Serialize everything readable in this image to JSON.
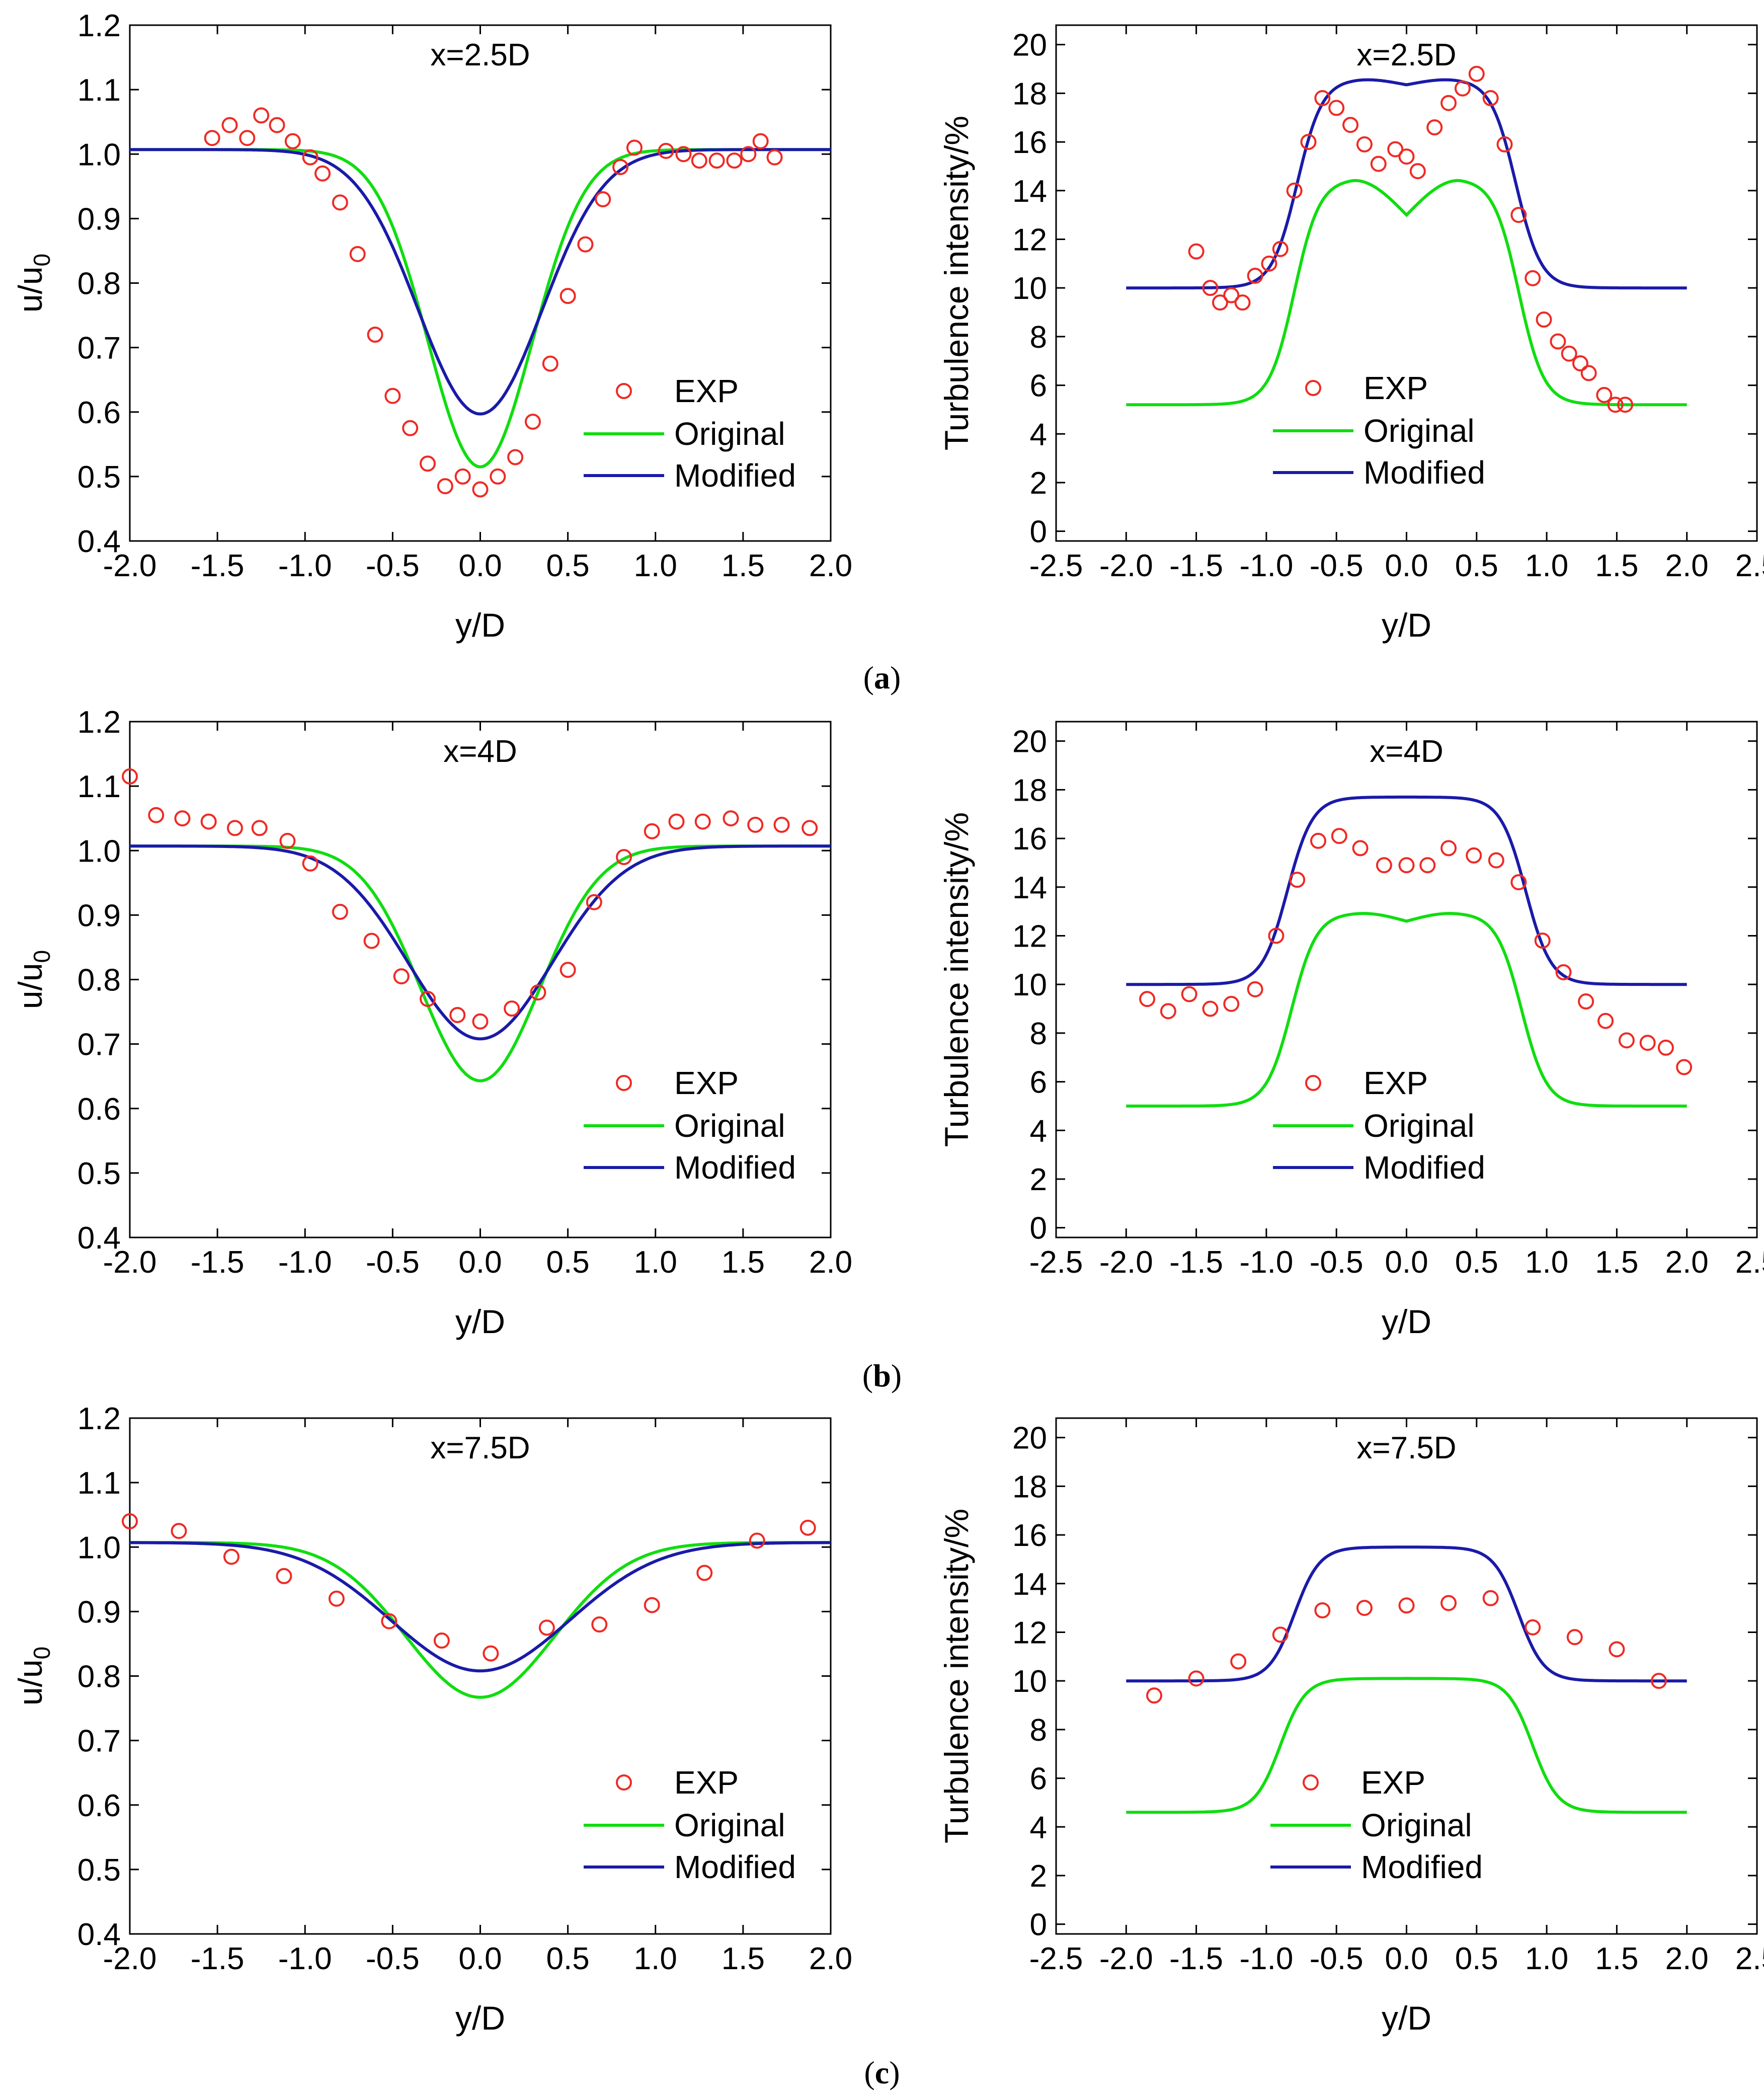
{
  "figure": {
    "panel_labels": [
      {
        "open": "(",
        "letter": "a",
        "close": ")"
      },
      {
        "open": "(",
        "letter": "b",
        "close": ")"
      },
      {
        "open": "(",
        "letter": "c",
        "close": ")"
      }
    ]
  },
  "legend": {
    "exp": "EXP",
    "original": "Original",
    "modified": "Modified"
  },
  "colors": {
    "exp": "#ee2a24",
    "original": "#10dd10",
    "modified": "#1a1aa8"
  },
  "chart_data": [
    {
      "id": "a-velocity",
      "panel": "a",
      "type": "line",
      "title": "x=2.5D",
      "xlabel": "y/D",
      "ylabel_main": "u/u",
      "ylabel_sub": "0",
      "xlim": [
        -2.0,
        2.0
      ],
      "ylim": [
        0.4,
        1.2
      ],
      "xticks": [
        -2.0,
        -1.5,
        -1.0,
        -0.5,
        0.0,
        0.5,
        1.0,
        1.5,
        2.0
      ],
      "yticks": [
        0.4,
        0.5,
        0.6,
        0.7,
        0.8,
        0.9,
        1.0,
        1.1,
        1.2
      ],
      "xtick_labels": [
        "-2.0",
        "-1.5",
        "-1.0",
        "-0.5",
        "0.0",
        "0.5",
        "1.0",
        "1.5",
        "2.0"
      ],
      "ytick_labels": [
        "0.4",
        "0.5",
        "0.6",
        "0.7",
        "0.8",
        "0.9",
        "1.0",
        "1.1",
        "1.2"
      ],
      "exp": [
        [
          -1.53,
          1.025
        ],
        [
          -1.43,
          1.045
        ],
        [
          -1.33,
          1.025
        ],
        [
          -1.25,
          1.06
        ],
        [
          -1.16,
          1.045
        ],
        [
          -1.07,
          1.02
        ],
        [
          -0.97,
          0.995
        ],
        [
          -0.9,
          0.97
        ],
        [
          -0.8,
          0.925
        ],
        [
          -0.7,
          0.845
        ],
        [
          -0.6,
          0.72
        ],
        [
          -0.5,
          0.625
        ],
        [
          -0.4,
          0.575
        ],
        [
          -0.3,
          0.52
        ],
        [
          -0.2,
          0.485
        ],
        [
          -0.1,
          0.5
        ],
        [
          0.0,
          0.48
        ],
        [
          0.1,
          0.5
        ],
        [
          0.2,
          0.53
        ],
        [
          0.3,
          0.585
        ],
        [
          0.4,
          0.675
        ],
        [
          0.5,
          0.78
        ],
        [
          0.6,
          0.86
        ],
        [
          0.7,
          0.93
        ],
        [
          0.8,
          0.98
        ],
        [
          0.88,
          1.01
        ],
        [
          1.06,
          1.005
        ],
        [
          1.16,
          1.0
        ],
        [
          1.25,
          0.99
        ],
        [
          1.35,
          0.99
        ],
        [
          1.45,
          0.99
        ],
        [
          1.53,
          1.0
        ],
        [
          1.6,
          1.02
        ],
        [
          1.68,
          0.995
        ]
      ],
      "original": {
        "baseline": 1.007,
        "center": 0.515,
        "flat": 0.0,
        "width": 0.42,
        "shape": 2.0
      },
      "modified": {
        "baseline": 1.007,
        "center": 0.597,
        "flat": 0.0,
        "width": 0.5,
        "shape": 2.0
      }
    },
    {
      "id": "a-turbulence",
      "panel": "a",
      "type": "line",
      "title": "x=2.5D",
      "xlabel": "y/D",
      "ylabel_main": "Turbulence intensity/%",
      "ylabel_sub": "",
      "xlim": [
        -2.5,
        2.5
      ],
      "ylim": [
        -0.4,
        20.8
      ],
      "xticks": [
        -2.5,
        -2.0,
        -1.5,
        -1.0,
        -0.5,
        0.0,
        0.5,
        1.0,
        1.5,
        2.0,
        2.5
      ],
      "yticks": [
        0,
        2,
        4,
        6,
        8,
        10,
        12,
        14,
        16,
        18,
        20
      ],
      "xtick_labels": [
        "-2.5",
        "-2.0",
        "-1.5",
        "-1.0",
        "-0.5",
        "0.0",
        "0.5",
        "1.0",
        "1.5",
        "2.0",
        "2.5"
      ],
      "ytick_labels": [
        "0",
        "2",
        "4",
        "6",
        "8",
        "10",
        "12",
        "14",
        "16",
        "18",
        "20"
      ],
      "exp": [
        [
          -1.5,
          11.5
        ],
        [
          -1.4,
          10.0
        ],
        [
          -1.33,
          9.4
        ],
        [
          -1.25,
          9.7
        ],
        [
          -1.17,
          9.4
        ],
        [
          -1.08,
          10.5
        ],
        [
          -0.98,
          11.0
        ],
        [
          -0.9,
          11.6
        ],
        [
          -0.8,
          14.0
        ],
        [
          -0.7,
          16.0
        ],
        [
          -0.6,
          17.8
        ],
        [
          -0.5,
          17.4
        ],
        [
          -0.4,
          16.7
        ],
        [
          -0.3,
          15.9
        ],
        [
          -0.2,
          15.1
        ],
        [
          -0.08,
          15.7
        ],
        [
          0.0,
          15.4
        ],
        [
          0.08,
          14.8
        ],
        [
          0.2,
          16.6
        ],
        [
          0.3,
          17.6
        ],
        [
          0.4,
          18.2
        ],
        [
          0.5,
          18.8
        ],
        [
          0.6,
          17.8
        ],
        [
          0.7,
          15.9
        ],
        [
          0.8,
          13.0
        ],
        [
          0.9,
          10.4
        ],
        [
          0.98,
          8.7
        ],
        [
          1.08,
          7.8
        ],
        [
          1.16,
          7.3
        ],
        [
          1.24,
          6.9
        ],
        [
          1.3,
          6.5
        ],
        [
          1.41,
          5.6
        ],
        [
          1.49,
          5.2
        ],
        [
          1.56,
          5.2
        ]
      ],
      "original": {
        "baseline": 5.2,
        "center": 13.0,
        "peak": 14.5,
        "peak_at": 0.4,
        "plateau_half": 0.8
      },
      "modified": {
        "baseline": 10.0,
        "center": 18.35,
        "peak": 18.6,
        "peak_at": 0.35,
        "plateau_half": 0.78
      }
    },
    {
      "id": "b-velocity",
      "panel": "b",
      "type": "line",
      "title": "x=4D",
      "xlabel": "y/D",
      "ylabel_main": "u/u",
      "ylabel_sub": "0",
      "xlim": [
        -2.0,
        2.0
      ],
      "ylim": [
        0.4,
        1.2
      ],
      "xticks": [
        -2.0,
        -1.5,
        -1.0,
        -0.5,
        0.0,
        0.5,
        1.0,
        1.5,
        2.0
      ],
      "yticks": [
        0.4,
        0.5,
        0.6,
        0.7,
        0.8,
        0.9,
        1.0,
        1.1,
        1.2
      ],
      "xtick_labels": [
        "-2.0",
        "-1.5",
        "-1.0",
        "-0.5",
        "0.0",
        "0.5",
        "1.0",
        "1.5",
        "2.0"
      ],
      "ytick_labels": [
        "0.4",
        "0.5",
        "0.6",
        "0.7",
        "0.8",
        "0.9",
        "1.0",
        "1.1",
        "1.2"
      ],
      "exp": [
        [
          -2.0,
          1.115
        ],
        [
          -1.85,
          1.055
        ],
        [
          -1.7,
          1.05
        ],
        [
          -1.55,
          1.045
        ],
        [
          -1.4,
          1.035
        ],
        [
          -1.26,
          1.035
        ],
        [
          -1.1,
          1.015
        ],
        [
          -0.97,
          0.98
        ],
        [
          -0.8,
          0.905
        ],
        [
          -0.62,
          0.86
        ],
        [
          -0.45,
          0.805
        ],
        [
          -0.3,
          0.77
        ],
        [
          -0.13,
          0.745
        ],
        [
          0.0,
          0.735
        ],
        [
          0.18,
          0.755
        ],
        [
          0.33,
          0.78
        ],
        [
          0.5,
          0.815
        ],
        [
          0.65,
          0.92
        ],
        [
          0.82,
          0.99
        ],
        [
          0.98,
          1.03
        ],
        [
          1.12,
          1.045
        ],
        [
          1.27,
          1.045
        ],
        [
          1.43,
          1.05
        ],
        [
          1.57,
          1.04
        ],
        [
          1.72,
          1.04
        ],
        [
          1.88,
          1.035
        ]
      ],
      "original": {
        "baseline": 1.007,
        "center": 0.643,
        "flat": 0.0,
        "width": 0.48,
        "shape": 2.0
      },
      "modified": {
        "baseline": 1.007,
        "center": 0.708,
        "flat": 0.0,
        "width": 0.58,
        "shape": 2.0
      }
    },
    {
      "id": "b-turbulence",
      "panel": "b",
      "type": "line",
      "title": "x=4D",
      "xlabel": "y/D",
      "ylabel_main": "Turbulence intensity/%",
      "ylabel_sub": "",
      "xlim": [
        -2.5,
        2.5
      ],
      "ylim": [
        -0.4,
        20.8
      ],
      "xticks": [
        -2.5,
        -2.0,
        -1.5,
        -1.0,
        -0.5,
        0.0,
        0.5,
        1.0,
        1.5,
        2.0,
        2.5
      ],
      "yticks": [
        0,
        2,
        4,
        6,
        8,
        10,
        12,
        14,
        16,
        18,
        20
      ],
      "xtick_labels": [
        "-2.5",
        "-2.0",
        "-1.5",
        "-1.0",
        "-0.5",
        "0.0",
        "0.5",
        "1.0",
        "1.5",
        "2.0",
        "2.5"
      ],
      "ytick_labels": [
        "0",
        "2",
        "4",
        "6",
        "8",
        "10",
        "12",
        "14",
        "16",
        "18",
        "20"
      ],
      "exp": [
        [
          -1.85,
          9.4
        ],
        [
          -1.7,
          8.9
        ],
        [
          -1.55,
          9.6
        ],
        [
          -1.4,
          9.0
        ],
        [
          -1.25,
          9.2
        ],
        [
          -1.08,
          9.8
        ],
        [
          -0.93,
          12.0
        ],
        [
          -0.78,
          14.3
        ],
        [
          -0.63,
          15.9
        ],
        [
          -0.48,
          16.1
        ],
        [
          -0.33,
          15.6
        ],
        [
          -0.16,
          14.9
        ],
        [
          0.0,
          14.9
        ],
        [
          0.15,
          14.9
        ],
        [
          0.3,
          15.6
        ],
        [
          0.48,
          15.3
        ],
        [
          0.64,
          15.1
        ],
        [
          0.8,
          14.2
        ],
        [
          0.97,
          11.8
        ],
        [
          1.12,
          10.5
        ],
        [
          1.28,
          9.3
        ],
        [
          1.42,
          8.5
        ],
        [
          1.57,
          7.7
        ],
        [
          1.72,
          7.6
        ],
        [
          1.85,
          7.4
        ],
        [
          1.98,
          6.6
        ]
      ],
      "original": {
        "baseline": 5.0,
        "center": 12.6,
        "peak": 12.95,
        "peak_at": 0.35,
        "plateau_half": 0.82
      },
      "modified": {
        "baseline": 10.0,
        "center": 17.7,
        "peak": 17.7,
        "peak_at": 0.0,
        "plateau_half": 0.85
      }
    },
    {
      "id": "c-velocity",
      "panel": "c",
      "type": "line",
      "title": "x=7.5D",
      "xlabel": "y/D",
      "ylabel_main": "u/u",
      "ylabel_sub": "0",
      "xlim": [
        -2.0,
        2.0
      ],
      "ylim": [
        0.4,
        1.2
      ],
      "xticks": [
        -2.0,
        -1.5,
        -1.0,
        -0.5,
        0.0,
        0.5,
        1.0,
        1.5,
        2.0
      ],
      "yticks": [
        0.4,
        0.5,
        0.6,
        0.7,
        0.8,
        0.9,
        1.0,
        1.1,
        1.2
      ],
      "xtick_labels": [
        "-2.0",
        "-1.5",
        "-1.0",
        "-0.5",
        "0.0",
        "0.5",
        "1.0",
        "1.5",
        "2.0"
      ],
      "ytick_labels": [
        "0.4",
        "0.5",
        "0.6",
        "0.7",
        "0.8",
        "0.9",
        "1.0",
        "1.1",
        "1.2"
      ],
      "exp": [
        [
          -2.0,
          1.04
        ],
        [
          -1.72,
          1.025
        ],
        [
          -1.42,
          0.985
        ],
        [
          -1.12,
          0.955
        ],
        [
          -0.82,
          0.92
        ],
        [
          -0.52,
          0.885
        ],
        [
          -0.22,
          0.855
        ],
        [
          0.06,
          0.835
        ],
        [
          0.38,
          0.875
        ],
        [
          0.68,
          0.88
        ],
        [
          0.98,
          0.91
        ],
        [
          1.28,
          0.96
        ],
        [
          1.58,
          1.01
        ],
        [
          1.87,
          1.03
        ]
      ],
      "original": {
        "baseline": 1.007,
        "center": 0.767,
        "flat": 0.0,
        "width": 0.6,
        "shape": 2.0
      },
      "modified": {
        "baseline": 1.007,
        "center": 0.808,
        "flat": 0.0,
        "width": 0.72,
        "shape": 2.0
      }
    },
    {
      "id": "c-turbulence",
      "panel": "c",
      "type": "line",
      "title": "x=7.5D",
      "xlabel": "y/D",
      "ylabel_main": "Turbulence intensity/%",
      "ylabel_sub": "",
      "xlim": [
        -2.5,
        2.5
      ],
      "ylim": [
        -0.4,
        20.8
      ],
      "xticks": [
        -2.5,
        -2.0,
        -1.5,
        -1.0,
        -0.5,
        0.0,
        0.5,
        1.0,
        1.5,
        2.0,
        2.5
      ],
      "yticks": [
        0,
        2,
        4,
        6,
        8,
        10,
        12,
        14,
        16,
        18,
        20
      ],
      "xtick_labels": [
        "-2.5",
        "-2.0",
        "-1.5",
        "-1.0",
        "-0.5",
        "0.0",
        "0.5",
        "1.0",
        "1.5",
        "2.0",
        "2.5"
      ],
      "ytick_labels": [
        "0",
        "2",
        "4",
        "6",
        "8",
        "10",
        "12",
        "14",
        "16",
        "18",
        "20"
      ],
      "exp": [
        [
          -1.8,
          9.4
        ],
        [
          -1.5,
          10.1
        ],
        [
          -1.2,
          10.8
        ],
        [
          -0.9,
          11.9
        ],
        [
          -0.6,
          12.9
        ],
        [
          -0.3,
          13.0
        ],
        [
          0.0,
          13.1
        ],
        [
          0.3,
          13.2
        ],
        [
          0.6,
          13.4
        ],
        [
          0.9,
          12.2
        ],
        [
          1.2,
          11.8
        ],
        [
          1.5,
          11.3
        ],
        [
          1.8,
          10.0
        ]
      ],
      "original": {
        "baseline": 4.6,
        "center": 10.1,
        "peak": 10.1,
        "peak_at": 0.0,
        "plateau_half": 0.9
      },
      "modified": {
        "baseline": 10.0,
        "center": 15.5,
        "peak": 15.5,
        "peak_at": 0.0,
        "plateau_half": 0.8
      }
    }
  ]
}
